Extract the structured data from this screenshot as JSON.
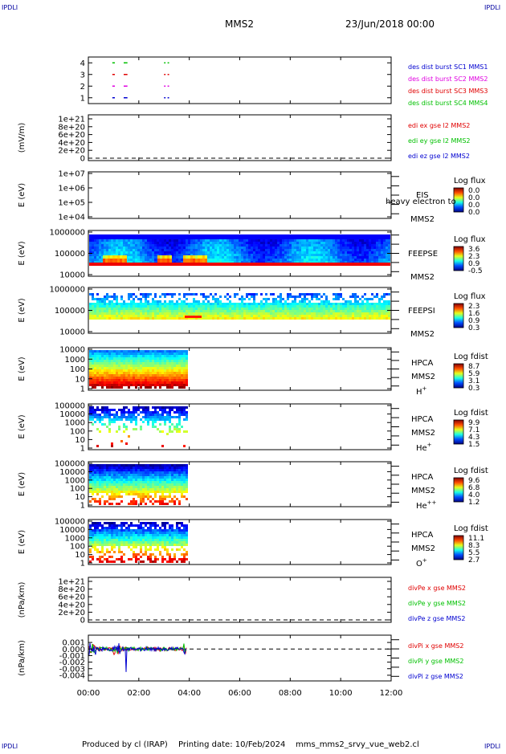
{
  "header": {
    "corner_tl": "IPDLI",
    "corner_tr": "IPDLI",
    "corner_bl": "IPDLI",
    "corner_br": "IPDLI",
    "mission": "MMS2",
    "date": "23/Jun/2018 00:00"
  },
  "footer": {
    "produced_by": "Produced by cl (IRAP)",
    "printing_date": "Printing date: 10/Feb/2024",
    "script": "mms_mms2_srvy_vue_web2.cl"
  },
  "colors": {
    "red": "#e00000",
    "green": "#00c000",
    "blue": "#0000d0",
    "magenta": "#e000e0",
    "blue_dark": "#0000a0"
  },
  "chart_data": {
    "type": "heatmap",
    "x_axis": {
      "ticks": [
        "00:00",
        "02:00",
        "04:00",
        "06:00",
        "08:00",
        "10:00",
        "12:00"
      ],
      "range_hours": [
        0,
        12
      ],
      "data_end_hours": 3.9
    },
    "panels": [
      {
        "id": "burst",
        "kind": "burst",
        "ylabel": "",
        "yticks": [
          "4",
          "3",
          "2",
          "1"
        ],
        "ylim": [
          0.5,
          4.5
        ],
        "legend": [
          {
            "text": "des dist burst SC1 MMS1",
            "color": "#0000d0"
          },
          {
            "text": "des dist burst SC2 MMS2",
            "color": "#e000e0"
          },
          {
            "text": "des dist burst SC3 MMS3",
            "color": "#e00000"
          },
          {
            "text": "des dist burst SC4 MMS4",
            "color": "#00c000"
          }
        ]
      },
      {
        "id": "edi",
        "kind": "line",
        "ylabel": "(mV/m)",
        "yticks": [
          "1e+21",
          "8e+20",
          "6e+20",
          "4e+20",
          "2e+20",
          "0"
        ],
        "ylim": [
          0,
          1e+21
        ],
        "legend": [
          {
            "text": "edi ex gse l2 MMS2",
            "color": "#e00000"
          },
          {
            "text": "edi ey gse l2 MMS2",
            "color": "#00c000"
          },
          {
            "text": "edi ez gse l2 MMS2",
            "color": "#0000d0"
          }
        ]
      },
      {
        "id": "eis",
        "kind": "empty-spectro",
        "ylabel": "E (eV)",
        "yticks": [
          "1e+07",
          "1e+06",
          "1e+05",
          "1e+04"
        ],
        "ylim": [
          10000,
          10000000
        ],
        "instrument": "EIS",
        "sc": "MMS2",
        "overlay": "heavy electron to",
        "cbar_title": "Log flux",
        "cbar_ticks": [
          "0.0",
          "0.0",
          "0.0",
          "0.0"
        ]
      },
      {
        "id": "feepse",
        "kind": "spectro",
        "ylabel": "E (eV)",
        "yticks": [
          "1000000",
          "100000",
          "10000"
        ],
        "ylim": [
          10000,
          1000000
        ],
        "instrument": "FEEPSE",
        "sc": "MMS2",
        "cbar_title": "Log flux",
        "cbar_ticks": [
          "3.6",
          "2.3",
          "0.9",
          "-0.5"
        ]
      },
      {
        "id": "feepsi",
        "kind": "spectro",
        "ylabel": "E (eV)",
        "yticks": [
          "1000000",
          "100000",
          "10000"
        ],
        "ylim": [
          10000,
          1000000
        ],
        "instrument": "FEEPSI",
        "sc": "MMS2",
        "cbar_title": "Log flux",
        "cbar_ticks": [
          "2.3",
          "1.6",
          "0.9",
          "0.3"
        ]
      },
      {
        "id": "hpca_h",
        "kind": "spectro",
        "ylabel": "E (eV)",
        "yticks": [
          "10000",
          "1000",
          "100",
          "10",
          "1"
        ],
        "ylim": [
          1,
          40000
        ],
        "instrument": "HPCA",
        "sc": "MMS2",
        "species": "H",
        "species_sup": "+",
        "cbar_title": "Log fdist",
        "cbar_ticks": [
          "8.7",
          "5.9",
          "3.1",
          "0.3"
        ]
      },
      {
        "id": "hpca_he",
        "kind": "spectro",
        "ylabel": "E (eV)",
        "yticks": [
          "100000",
          "10000",
          "1000",
          "100",
          "10",
          "1"
        ],
        "ylim": [
          1,
          100000
        ],
        "instrument": "HPCA",
        "sc": "MMS2",
        "species": "He",
        "species_sup": "+",
        "cbar_title": "Log fdist",
        "cbar_ticks": [
          "9.9",
          "7.1",
          "4.3",
          "1.5"
        ]
      },
      {
        "id": "hpca_he2",
        "kind": "spectro",
        "ylabel": "E (eV)",
        "yticks": [
          "100000",
          "10000",
          "1000",
          "100",
          "10",
          "1"
        ],
        "ylim": [
          1,
          100000
        ],
        "instrument": "HPCA",
        "sc": "MMS2",
        "species": "He",
        "species_sup": "++",
        "cbar_title": "Log fdist",
        "cbar_ticks": [
          "9.6",
          "6.8",
          "4.0",
          "1.2"
        ]
      },
      {
        "id": "hpca_o",
        "kind": "spectro",
        "ylabel": "E (eV)",
        "yticks": [
          "100000",
          "10000",
          "1000",
          "100",
          "10",
          "1"
        ],
        "ylim": [
          1,
          100000
        ],
        "instrument": "HPCA",
        "sc": "MMS2",
        "species": "O",
        "species_sup": "+",
        "cbar_title": "Log fdist",
        "cbar_ticks": [
          "11.1",
          "8.3",
          "5.5",
          "2.7"
        ]
      },
      {
        "id": "divpe",
        "kind": "line",
        "ylabel": "(nPa/km)",
        "yticks": [
          "1e+21",
          "8e+20",
          "6e+20",
          "4e+20",
          "2e+20",
          "0"
        ],
        "ylim": [
          0,
          1e+21
        ],
        "legend": [
          {
            "text": "divPe x gse MMS2",
            "color": "#e00000"
          },
          {
            "text": "divPe y gse MMS2",
            "color": "#00c000"
          },
          {
            "text": "divPe z gse MMS2",
            "color": "#0000d0"
          }
        ]
      },
      {
        "id": "divpi",
        "kind": "divpi",
        "ylabel": "(nPa/km)",
        "yticks": [
          "0.001",
          "0.000",
          "-0.001",
          "-0.002",
          "-0.003",
          "-0.004"
        ],
        "ylim": [
          -0.0045,
          0.0015
        ],
        "legend": [
          {
            "text": "divPi x gse MMS2",
            "color": "#e00000"
          },
          {
            "text": "divPi y gse MMS2",
            "color": "#00c000"
          },
          {
            "text": "divPi z gse MMS2",
            "color": "#0000d0"
          }
        ]
      }
    ]
  }
}
